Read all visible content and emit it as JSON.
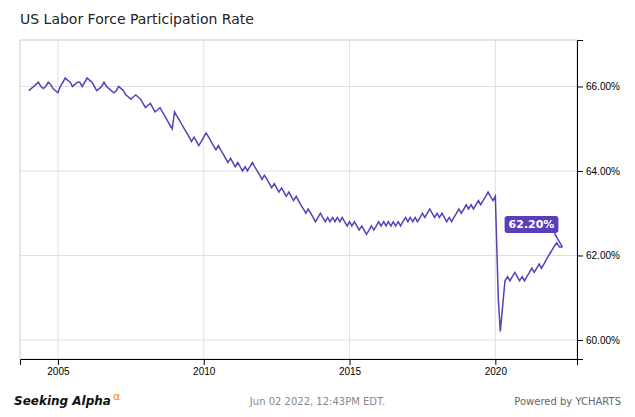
{
  "chart_data": {
    "type": "line",
    "title": "US Labor Force Participation Rate",
    "color": "#5b3eb8",
    "grid": true,
    "xlim": [
      2003.7,
      2022.8
    ],
    "xticks": [
      2005,
      2010,
      2015,
      2020
    ],
    "ylim": [
      59.55,
      67.1
    ],
    "yticks": [
      {
        "value": 60.0,
        "label": "60.00%"
      },
      {
        "value": 62.0,
        "label": "62.00%"
      },
      {
        "value": 64.0,
        "label": "64.00%"
      },
      {
        "value": 66.0,
        "label": "66.00%"
      }
    ],
    "annotations": [
      {
        "text": "62.20%",
        "x": 2022.3,
        "y": 62.2
      }
    ],
    "footer": [
      "Seeking Alpha",
      "α",
      "Jun 02 2022, 12:43PM EDT.",
      "Powered by YCHARTS"
    ],
    "x": [
      2004.0,
      2004.08,
      2004.17,
      2004.25,
      2004.33,
      2004.42,
      2004.5,
      2004.58,
      2004.67,
      2004.75,
      2004.83,
      2004.92,
      2005.0,
      2005.08,
      2005.17,
      2005.25,
      2005.33,
      2005.42,
      2005.5,
      2005.58,
      2005.67,
      2005.75,
      2005.83,
      2005.92,
      2006.0,
      2006.08,
      2006.17,
      2006.25,
      2006.33,
      2006.42,
      2006.5,
      2006.58,
      2006.67,
      2006.75,
      2006.83,
      2006.92,
      2007.0,
      2007.08,
      2007.17,
      2007.25,
      2007.33,
      2007.42,
      2007.5,
      2007.58,
      2007.67,
      2007.75,
      2007.83,
      2007.92,
      2008.0,
      2008.08,
      2008.17,
      2008.25,
      2008.33,
      2008.42,
      2008.5,
      2008.58,
      2008.67,
      2008.75,
      2008.83,
      2008.92,
      2009.0,
      2009.08,
      2009.17,
      2009.25,
      2009.33,
      2009.42,
      2009.5,
      2009.58,
      2009.67,
      2009.75,
      2009.83,
      2009.92,
      2010.0,
      2010.08,
      2010.17,
      2010.25,
      2010.33,
      2010.42,
      2010.5,
      2010.58,
      2010.67,
      2010.75,
      2010.83,
      2010.92,
      2011.0,
      2011.08,
      2011.17,
      2011.25,
      2011.33,
      2011.42,
      2011.5,
      2011.58,
      2011.67,
      2011.75,
      2011.83,
      2011.92,
      2012.0,
      2012.08,
      2012.17,
      2012.25,
      2012.33,
      2012.42,
      2012.5,
      2012.58,
      2012.67,
      2012.75,
      2012.83,
      2012.92,
      2013.0,
      2013.08,
      2013.17,
      2013.25,
      2013.33,
      2013.42,
      2013.5,
      2013.58,
      2013.67,
      2013.75,
      2013.83,
      2013.92,
      2014.0,
      2014.08,
      2014.17,
      2014.25,
      2014.33,
      2014.42,
      2014.5,
      2014.58,
      2014.67,
      2014.75,
      2014.83,
      2014.92,
      2015.0,
      2015.08,
      2015.17,
      2015.25,
      2015.33,
      2015.42,
      2015.5,
      2015.58,
      2015.67,
      2015.75,
      2015.83,
      2015.92,
      2016.0,
      2016.08,
      2016.17,
      2016.25,
      2016.33,
      2016.42,
      2016.5,
      2016.58,
      2016.67,
      2016.75,
      2016.83,
      2016.92,
      2017.0,
      2017.08,
      2017.17,
      2017.25,
      2017.33,
      2017.42,
      2017.5,
      2017.58,
      2017.67,
      2017.75,
      2017.83,
      2017.92,
      2018.0,
      2018.08,
      2018.17,
      2018.25,
      2018.33,
      2018.42,
      2018.5,
      2018.58,
      2018.67,
      2018.75,
      2018.83,
      2018.92,
      2019.0,
      2019.08,
      2019.17,
      2019.25,
      2019.33,
      2019.42,
      2019.5,
      2019.58,
      2019.67,
      2019.75,
      2019.83,
      2019.92,
      2020.0,
      2020.1,
      2020.17,
      2020.25,
      2020.33,
      2020.42,
      2020.5,
      2020.58,
      2020.67,
      2020.75,
      2020.83,
      2020.92,
      2021.0,
      2021.08,
      2021.17,
      2021.25,
      2021.33,
      2021.42,
      2021.5,
      2021.58,
      2021.67,
      2021.75,
      2021.83,
      2021.92,
      2022.0,
      2022.1,
      2022.2,
      2022.3
    ],
    "values": [
      65.9,
      65.95,
      66.0,
      66.05,
      66.1,
      66.0,
      65.95,
      66.0,
      66.1,
      66.05,
      65.95,
      65.9,
      65.85,
      66.0,
      66.1,
      66.2,
      66.15,
      66.1,
      66.0,
      66.05,
      66.1,
      66.1,
      66.0,
      66.1,
      66.2,
      66.15,
      66.1,
      66.0,
      65.9,
      65.95,
      66.0,
      66.1,
      66.0,
      65.95,
      65.9,
      65.85,
      65.9,
      66.0,
      65.95,
      65.9,
      65.8,
      65.75,
      65.7,
      65.75,
      65.8,
      65.75,
      65.7,
      65.6,
      65.5,
      65.55,
      65.6,
      65.5,
      65.4,
      65.45,
      65.5,
      65.4,
      65.3,
      65.2,
      65.1,
      65.0,
      65.4,
      65.3,
      65.2,
      65.1,
      65.0,
      64.9,
      64.8,
      64.7,
      64.8,
      64.7,
      64.6,
      64.7,
      64.8,
      64.9,
      64.8,
      64.7,
      64.6,
      64.5,
      64.6,
      64.5,
      64.4,
      64.3,
      64.2,
      64.3,
      64.2,
      64.1,
      64.2,
      64.1,
      64.0,
      64.1,
      64.0,
      64.1,
      64.2,
      64.1,
      64.0,
      63.9,
      63.8,
      63.9,
      63.8,
      63.7,
      63.6,
      63.7,
      63.6,
      63.5,
      63.6,
      63.5,
      63.4,
      63.5,
      63.4,
      63.3,
      63.4,
      63.3,
      63.2,
      63.1,
      63.0,
      63.1,
      63.0,
      62.9,
      62.8,
      62.9,
      63.0,
      62.9,
      62.8,
      62.9,
      62.8,
      62.9,
      62.8,
      62.9,
      62.8,
      62.9,
      62.8,
      62.7,
      62.8,
      62.7,
      62.8,
      62.7,
      62.6,
      62.7,
      62.6,
      62.5,
      62.6,
      62.7,
      62.6,
      62.7,
      62.8,
      62.7,
      62.8,
      62.7,
      62.8,
      62.7,
      62.8,
      62.7,
      62.8,
      62.7,
      62.8,
      62.9,
      62.8,
      62.9,
      62.8,
      62.9,
      62.8,
      62.9,
      63.0,
      62.9,
      63.0,
      63.1,
      63.0,
      62.9,
      63.0,
      62.9,
      63.0,
      62.9,
      62.8,
      62.9,
      62.8,
      62.9,
      63.0,
      63.1,
      63.0,
      63.1,
      63.2,
      63.1,
      63.2,
      63.1,
      63.2,
      63.3,
      63.2,
      63.3,
      63.4,
      63.5,
      63.4,
      63.3,
      63.4,
      61.0,
      60.2,
      60.8,
      61.4,
      61.5,
      61.4,
      61.5,
      61.6,
      61.5,
      61.4,
      61.5,
      61.4,
      61.5,
      61.6,
      61.7,
      61.6,
      61.7,
      61.8,
      61.7,
      61.8,
      61.9,
      62.0,
      62.1,
      62.2,
      62.3,
      62.2,
      62.2
    ]
  }
}
